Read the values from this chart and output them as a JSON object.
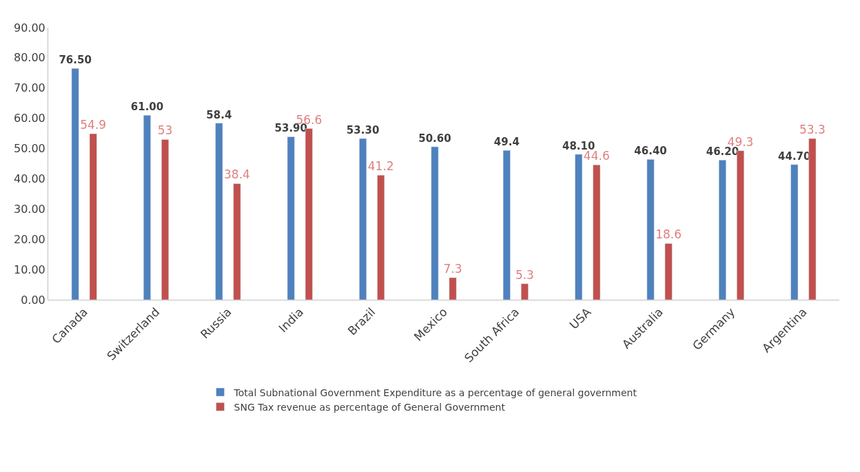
{
  "chart_data": {
    "type": "bar",
    "categories": [
      "Canada",
      "Switzerland",
      "Russia",
      "India",
      "Brazil",
      "Mexico",
      "South Africa",
      "USA",
      "Australia",
      "Germany",
      "Argentina"
    ],
    "series": [
      {
        "name": "Total Subnational Government Expenditure as a percentage of general government",
        "color": "#4f81bd",
        "values": [
          76.5,
          61.0,
          58.4,
          53.9,
          53.3,
          50.6,
          49.4,
          48.1,
          46.4,
          46.2,
          44.7
        ],
        "value_labels": [
          "76.50",
          "61.00",
          "58.4",
          "53.90",
          "53.30",
          "50.60",
          "49.4",
          "48.10",
          "46.40",
          "46.20",
          "44.70"
        ]
      },
      {
        "name": "SNG Tax revenue as percentage of General Government",
        "color": "#c0504d",
        "values": [
          54.9,
          53,
          38.4,
          56.6,
          41.2,
          7.3,
          5.3,
          44.6,
          18.6,
          49.3,
          53.3
        ],
        "value_labels": [
          "54.9",
          "53",
          "38.4",
          "56.6",
          "41.2",
          "7.3",
          "5.3",
          "44.6",
          "18.6",
          "49.3",
          "53.3"
        ]
      }
    ],
    "ylim": [
      0,
      90
    ],
    "yticks": [
      {
        "value": 0,
        "label": "0.00"
      },
      {
        "value": 10,
        "label": "10.00"
      },
      {
        "value": 20,
        "label": "20.00"
      },
      {
        "value": 30,
        "label": "30.00"
      },
      {
        "value": 40,
        "label": "40.00"
      },
      {
        "value": 50,
        "label": "50.00"
      },
      {
        "value": 60,
        "label": "60.00"
      },
      {
        "value": 70,
        "label": "70.00"
      },
      {
        "value": 80,
        "label": "80.00"
      },
      {
        "value": 90,
        "label": "90.00"
      }
    ],
    "legend": "bottom"
  }
}
